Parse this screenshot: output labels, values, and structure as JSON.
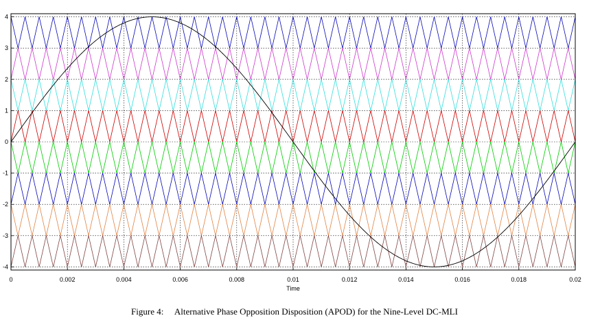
{
  "caption": "Figure 4:     Alternative Phase Opposition Disposition (APOD) for the Nine-Level DC-MLI",
  "chart_data": {
    "type": "line",
    "xlabel": "Time",
    "ylabel": "",
    "xlim": [
      0,
      0.02
    ],
    "ylim": [
      -4.1,
      4.1
    ],
    "xticks": [
      0,
      0.002,
      0.004,
      0.006,
      0.008,
      0.01,
      0.012,
      0.014,
      0.016,
      0.018,
      0.02
    ],
    "xtick_labels": [
      "0",
      "0.002",
      "0.004",
      "0.006",
      "0.008",
      "0.01",
      "0.012",
      "0.014",
      "0.016",
      "0.018",
      "0.02"
    ],
    "yticks": [
      -4,
      -3,
      -2,
      -1,
      0,
      1,
      2,
      3,
      4
    ],
    "ytick_labels": [
      "-4",
      "-3",
      "-2",
      "-1",
      "0",
      "1",
      "2",
      "3",
      "4"
    ],
    "grid": true,
    "grid_style": "dotted",
    "reference": {
      "amplitude": 4,
      "frequency_hz": 50,
      "color": "#000000"
    },
    "carriers": {
      "frequency_hz": 2000,
      "bands": [
        {
          "lower": 3,
          "upper": 4,
          "color": "#0000b4",
          "phase": "in"
        },
        {
          "lower": 2,
          "upper": 3,
          "color": "#cc33cc",
          "phase": "opposite"
        },
        {
          "lower": 1,
          "upper": 2,
          "color": "#33dddd",
          "phase": "in"
        },
        {
          "lower": 0,
          "upper": 1,
          "color": "#cc0000",
          "phase": "opposite"
        },
        {
          "lower": -1,
          "upper": 0,
          "color": "#00cc00",
          "phase": "in"
        },
        {
          "lower": -2,
          "upper": -1,
          "color": "#0000b4",
          "phase": "opposite"
        },
        {
          "lower": -3,
          "upper": -2,
          "color": "#e08040",
          "phase": "in"
        },
        {
          "lower": -4,
          "upper": -3,
          "color": "#804040",
          "phase": "opposite"
        }
      ]
    }
  }
}
